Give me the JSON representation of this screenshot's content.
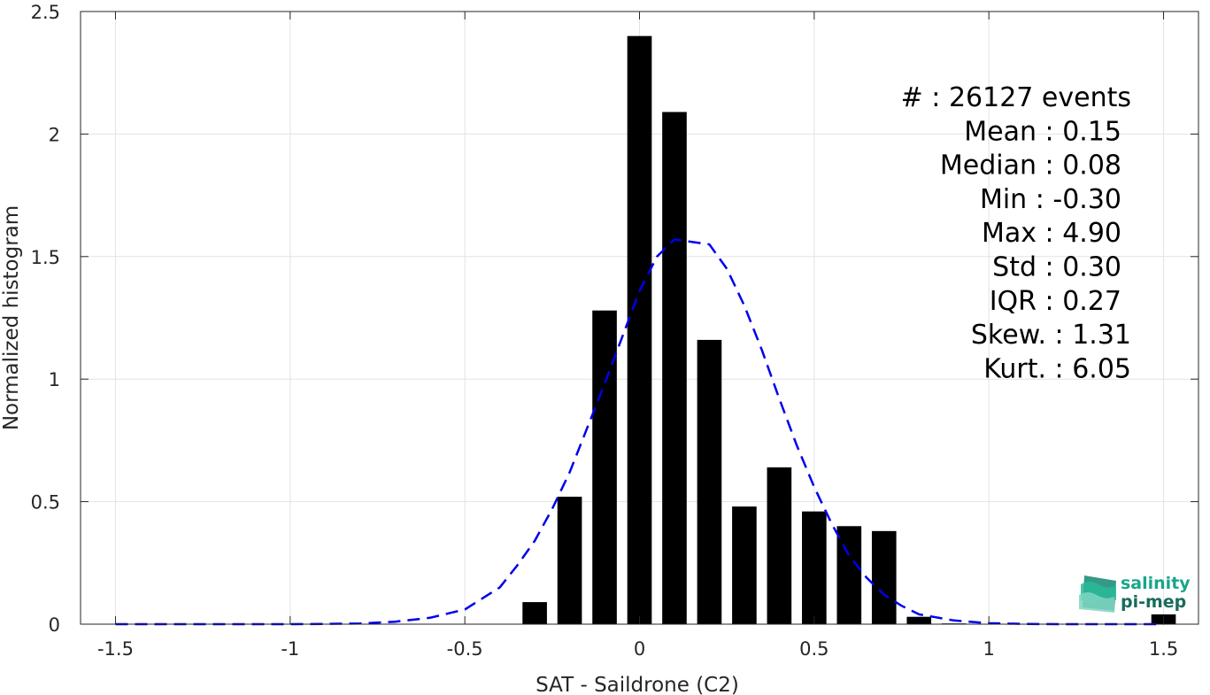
{
  "chart_data": {
    "type": "bar",
    "xlabel": "SAT - Saildrone (C2)",
    "ylabel": "Normalized histogram",
    "xlim": [
      -1.6,
      1.6
    ],
    "ylim": [
      0,
      2.5
    ],
    "grid": true,
    "xticks": [
      -1.5,
      -1,
      -0.5,
      0,
      0.5,
      1,
      1.5
    ],
    "xtick_labels": [
      "-1.5",
      "-1",
      "-0.5",
      "0",
      "0.5",
      "1",
      "1.5"
    ],
    "yticks": [
      0,
      0.5,
      1,
      1.5,
      2,
      2.5
    ],
    "ytick_labels": [
      "0",
      "0.5",
      "1",
      "1.5",
      "2",
      "2.5"
    ],
    "bar_color": "#000000",
    "bar_width": 0.07,
    "bars": {
      "x": [
        -0.3,
        -0.2,
        -0.1,
        0.0,
        0.1,
        0.2,
        0.3,
        0.4,
        0.5,
        0.6,
        0.7,
        0.8,
        0.9,
        1.5
      ],
      "values": [
        0.09,
        0.52,
        1.28,
        2.4,
        2.09,
        1.16,
        0.48,
        0.64,
        0.46,
        0.4,
        0.38,
        0.03,
        0.003,
        0.04
      ]
    },
    "fit_line": {
      "style": "dashed",
      "color": "#0000ee",
      "x": [
        -1.5,
        -1.4,
        -1.3,
        -1.2,
        -1.1,
        -1.0,
        -0.9,
        -0.8,
        -0.7,
        -0.6,
        -0.5,
        -0.4,
        -0.35,
        -0.3,
        -0.25,
        -0.2,
        -0.15,
        -0.1,
        -0.05,
        0.0,
        0.05,
        0.1,
        0.15,
        0.2,
        0.25,
        0.3,
        0.35,
        0.4,
        0.45,
        0.5,
        0.55,
        0.6,
        0.65,
        0.7,
        0.75,
        0.8,
        0.9,
        1.0,
        1.1,
        1.2,
        1.3,
        1.4,
        1.5
      ],
      "values": [
        0,
        0,
        0,
        0,
        0,
        0,
        0.001,
        0.003,
        0.01,
        0.026,
        0.06,
        0.15,
        0.24,
        0.34,
        0.47,
        0.62,
        0.8,
        0.98,
        1.17,
        1.36,
        1.5,
        1.57,
        1.56,
        1.55,
        1.45,
        1.3,
        1.12,
        0.92,
        0.73,
        0.56,
        0.41,
        0.28,
        0.19,
        0.12,
        0.075,
        0.04,
        0.015,
        0.004,
        0.001,
        0,
        0,
        0,
        0
      ]
    },
    "stats": [
      {
        "label": "#  :",
        "value": "26127 events"
      },
      {
        "label": "Mean :",
        "value": "0.15"
      },
      {
        "label": "Median :",
        "value": "0.08"
      },
      {
        "label": "Min :",
        "value": "-0.30"
      },
      {
        "label": "Max :",
        "value": "4.90"
      },
      {
        "label": "Std :",
        "value": "0.30"
      },
      {
        "label": "IQR :",
        "value": "0.27"
      },
      {
        "label": "Skew. :",
        "value": "1.31"
      },
      {
        "label": "Kurt. :",
        "value": "6.05"
      }
    ]
  },
  "logo": {
    "line1": "salinity",
    "line2": "pi-mep",
    "color1": "#1aa58c",
    "color2": "#1a6b5b",
    "icon": "waves-logo-icon"
  }
}
